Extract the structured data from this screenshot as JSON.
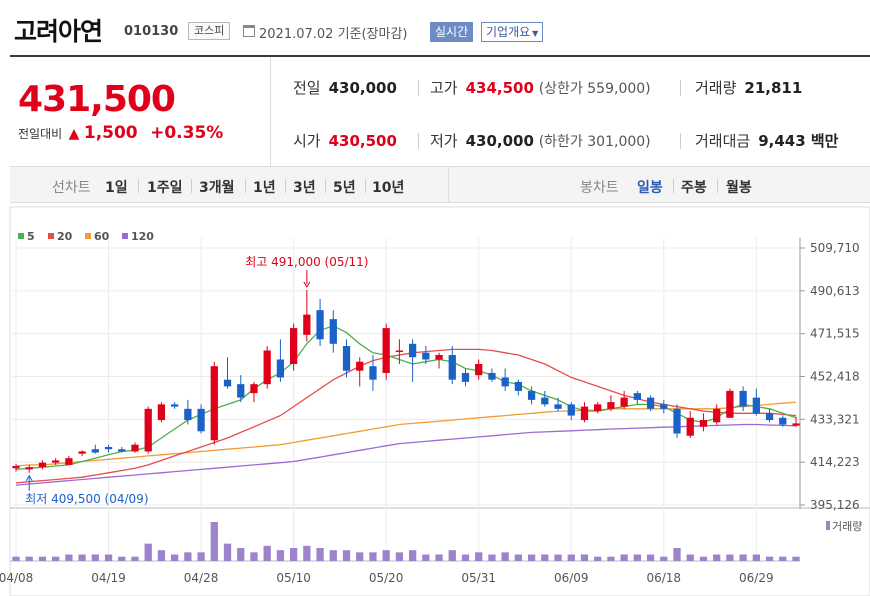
{
  "header": {
    "company_name": "고려아연",
    "stock_code": "010130",
    "market": "코스피",
    "date_basis": "2021.07.02  기준(장마감)",
    "realtime_button": "실시간",
    "overview_button": "기업개요",
    "overview_arrow": "▼"
  },
  "price": {
    "current": "431,500",
    "change_label": "전일대비",
    "change_arrow": "▲",
    "change_amount": "1,500",
    "change_percent": "+0.35%"
  },
  "stats": {
    "prev_close_label": "전일",
    "prev_close": "430,000",
    "high_label": "고가",
    "high": "434,500",
    "upper_limit": "(상한가 559,000)",
    "volume_label": "거래량",
    "volume": "21,811",
    "open_label": "시가",
    "open": "430,500",
    "low_label": "저가",
    "low": "430,000",
    "lower_limit": "(하한가 301,000)",
    "trade_value_label": "거래대금",
    "trade_value": "9,443 백만"
  },
  "period_bar": {
    "line_chart_label": "선차트",
    "periods": [
      "1일",
      "1주일",
      "3개월",
      "1년",
      "3년",
      "5년",
      "10년"
    ],
    "candle_chart_label": "봉차트",
    "candle_periods": [
      "일봉",
      "주봉",
      "월봉"
    ],
    "active_candle": "일봉"
  },
  "colors": {
    "up": "#e0001a",
    "down": "#1a62c8",
    "ma5": "#4caf50",
    "ma20": "#e84c4c",
    "ma60": "#f39c33",
    "ma120": "#9c6ad4",
    "volume": "#9c83cc"
  },
  "chart_data": {
    "type": "candlestick",
    "legend": [
      "5",
      "20",
      "60",
      "120"
    ],
    "yticks": [
      "509,710",
      "490,613",
      "471,515",
      "452,418",
      "433,321",
      "414,223",
      "395,126"
    ],
    "ylim": [
      395126,
      509710
    ],
    "x_tick_labels": [
      {
        "label": "04/08",
        "index": 0
      },
      {
        "label": "04/19",
        "index": 7
      },
      {
        "label": "04/28",
        "index": 14
      },
      {
        "label": "05/10",
        "index": 21
      },
      {
        "label": "05/20",
        "index": 28
      },
      {
        "label": "05/31",
        "index": 35
      },
      {
        "label": "06/09",
        "index": 42
      },
      {
        "label": "06/18",
        "index": 49
      },
      {
        "label": "06/29",
        "index": 56
      }
    ],
    "annotations": {
      "high": "최고 491,000 (05/11)",
      "high_index": 22,
      "high_value": 491000,
      "low": "최저 409,500 (04/09)",
      "low_index": 1,
      "low_value": 409500
    },
    "volume_label": "거래량",
    "candles": [
      {
        "o": 411500,
        "h": 413500,
        "l": 410000,
        "c": 412500,
        "v": 2
      },
      {
        "o": 411000,
        "h": 413000,
        "l": 409500,
        "c": 412000,
        "v": 2
      },
      {
        "o": 412000,
        "h": 415000,
        "l": 411000,
        "c": 414000,
        "v": 2
      },
      {
        "o": 414000,
        "h": 416000,
        "l": 413000,
        "c": 415000,
        "v": 2
      },
      {
        "o": 413000,
        "h": 417000,
        "l": 413000,
        "c": 416000,
        "v": 3
      },
      {
        "o": 418000,
        "h": 419500,
        "l": 417000,
        "c": 419000,
        "v": 3
      },
      {
        "o": 420000,
        "h": 422000,
        "l": 418000,
        "c": 418500,
        "v": 3
      },
      {
        "o": 421000,
        "h": 422000,
        "l": 418500,
        "c": 420000,
        "v": 3
      },
      {
        "o": 420000,
        "h": 421000,
        "l": 418500,
        "c": 419000,
        "v": 2
      },
      {
        "o": 419000,
        "h": 423000,
        "l": 418500,
        "c": 422000,
        "v": 2
      },
      {
        "o": 419000,
        "h": 439000,
        "l": 418000,
        "c": 438000,
        "v": 8
      },
      {
        "o": 433000,
        "h": 441000,
        "l": 432000,
        "c": 440000,
        "v": 5
      },
      {
        "o": 440000,
        "h": 441000,
        "l": 438000,
        "c": 439000,
        "v": 3
      },
      {
        "o": 438000,
        "h": 442000,
        "l": 431000,
        "c": 433000,
        "v": 4
      },
      {
        "o": 438000,
        "h": 440000,
        "l": 427000,
        "c": 428000,
        "v": 4
      },
      {
        "o": 424000,
        "h": 459000,
        "l": 422000,
        "c": 457000,
        "v": 18
      },
      {
        "o": 451000,
        "h": 461000,
        "l": 447000,
        "c": 448000,
        "v": 8
      },
      {
        "o": 449000,
        "h": 453000,
        "l": 441000,
        "c": 443000,
        "v": 6
      },
      {
        "o": 445000,
        "h": 450000,
        "l": 441000,
        "c": 449000,
        "v": 4
      },
      {
        "o": 449000,
        "h": 466000,
        "l": 447000,
        "c": 464000,
        "v": 7
      },
      {
        "o": 460000,
        "h": 469000,
        "l": 450000,
        "c": 452000,
        "v": 5
      },
      {
        "o": 458000,
        "h": 476000,
        "l": 455000,
        "c": 474000,
        "v": 6
      },
      {
        "o": 471000,
        "h": 491000,
        "l": 468000,
        "c": 480000,
        "v": 7
      },
      {
        "o": 482000,
        "h": 487000,
        "l": 466000,
        "c": 469000,
        "v": 6
      },
      {
        "o": 478000,
        "h": 482000,
        "l": 463000,
        "c": 467000,
        "v": 5
      },
      {
        "o": 466000,
        "h": 469000,
        "l": 452000,
        "c": 455000,
        "v": 5
      },
      {
        "o": 455000,
        "h": 461000,
        "l": 448000,
        "c": 459000,
        "v": 4
      },
      {
        "o": 457000,
        "h": 462000,
        "l": 446000,
        "c": 451000,
        "v": 4
      },
      {
        "o": 454000,
        "h": 476000,
        "l": 451000,
        "c": 474000,
        "v": 5
      },
      {
        "o": 464000,
        "h": 469000,
        "l": 458000,
        "c": 464000,
        "v": 4
      },
      {
        "o": 467000,
        "h": 469000,
        "l": 450000,
        "c": 461000,
        "v": 5
      },
      {
        "o": 463000,
        "h": 466000,
        "l": 458000,
        "c": 460000,
        "v": 3
      },
      {
        "o": 460000,
        "h": 463000,
        "l": 456000,
        "c": 462000,
        "v": 3
      },
      {
        "o": 462000,
        "h": 466000,
        "l": 449000,
        "c": 451000,
        "v": 5
      },
      {
        "o": 454000,
        "h": 456000,
        "l": 448000,
        "c": 450000,
        "v": 3
      },
      {
        "o": 453000,
        "h": 460000,
        "l": 451000,
        "c": 458000,
        "v": 4
      },
      {
        "o": 454000,
        "h": 456000,
        "l": 450000,
        "c": 451000,
        "v": 3
      },
      {
        "o": 452000,
        "h": 456000,
        "l": 446000,
        "c": 448000,
        "v": 4
      },
      {
        "o": 450000,
        "h": 451000,
        "l": 444000,
        "c": 446000,
        "v": 3
      },
      {
        "o": 446000,
        "h": 448000,
        "l": 440000,
        "c": 442000,
        "v": 3
      },
      {
        "o": 443000,
        "h": 446000,
        "l": 439000,
        "c": 440000,
        "v": 3
      },
      {
        "o": 440000,
        "h": 443000,
        "l": 437000,
        "c": 438000,
        "v": 3
      },
      {
        "o": 440000,
        "h": 441000,
        "l": 433000,
        "c": 435000,
        "v": 3
      },
      {
        "o": 433000,
        "h": 441000,
        "l": 432000,
        "c": 439000,
        "v": 3
      },
      {
        "o": 437000,
        "h": 441000,
        "l": 436000,
        "c": 440000,
        "v": 2
      },
      {
        "o": 438000,
        "h": 444000,
        "l": 437000,
        "c": 441000,
        "v": 2
      },
      {
        "o": 439000,
        "h": 446000,
        "l": 438000,
        "c": 443000,
        "v": 3
      },
      {
        "o": 445000,
        "h": 446000,
        "l": 440000,
        "c": 442000,
        "v": 3
      },
      {
        "o": 443000,
        "h": 444000,
        "l": 437000,
        "c": 438000,
        "v": 3
      },
      {
        "o": 440000,
        "h": 442000,
        "l": 436000,
        "c": 438000,
        "v": 2
      },
      {
        "o": 438000,
        "h": 440000,
        "l": 425000,
        "c": 427000,
        "v": 6
      },
      {
        "o": 426000,
        "h": 437000,
        "l": 425000,
        "c": 434000,
        "v": 3
      },
      {
        "o": 430000,
        "h": 436000,
        "l": 428000,
        "c": 433000,
        "v": 2
      },
      {
        "o": 432000,
        "h": 440000,
        "l": 431000,
        "c": 438000,
        "v": 3
      },
      {
        "o": 434000,
        "h": 447000,
        "l": 434000,
        "c": 446000,
        "v": 3
      },
      {
        "o": 446000,
        "h": 448000,
        "l": 437000,
        "c": 439000,
        "v": 3
      },
      {
        "o": 443000,
        "h": 447000,
        "l": 435000,
        "c": 436000,
        "v": 3
      },
      {
        "o": 436000,
        "h": 438000,
        "l": 432000,
        "c": 433000,
        "v": 2
      },
      {
        "o": 434000,
        "h": 435000,
        "l": 430000,
        "c": 431000,
        "v": 2
      },
      {
        "o": 430500,
        "h": 434500,
        "l": 430000,
        "c": 431500,
        "v": 2
      }
    ],
    "ma5": [
      411000,
      411500,
      412000,
      412500,
      413000,
      414500,
      416000,
      417500,
      419000,
      419500,
      421000,
      425000,
      429000,
      433000,
      435500,
      438000,
      440000,
      442000,
      447000,
      451000,
      454000,
      459000,
      467000,
      473000,
      475000,
      472000,
      467000,
      463000,
      462000,
      460000,
      458000,
      459000,
      460000,
      459000,
      456000,
      455000,
      453000,
      450000,
      449000,
      446000,
      444000,
      442000,
      439000,
      437000,
      437000,
      438000,
      439000,
      440000,
      440000,
      439000,
      436000,
      433000,
      432000,
      434000,
      438000,
      440000,
      439000,
      438000,
      436000,
      434000
    ],
    "ma20": [
      405000,
      405500,
      406000,
      406500,
      407000,
      407500,
      408500,
      409500,
      410500,
      411500,
      413000,
      415000,
      417000,
      419000,
      421000,
      423000,
      425000,
      427500,
      430000,
      432500,
      435000,
      439000,
      443000,
      447000,
      451000,
      454000,
      457000,
      459500,
      461000,
      462000,
      463000,
      463500,
      464000,
      464500,
      464500,
      464500,
      464000,
      463000,
      462000,
      460000,
      458000,
      455000,
      452000,
      450000,
      448000,
      446000,
      444000,
      442500,
      441000,
      440000,
      439000,
      438000,
      437000,
      436500,
      436000,
      436000,
      436000,
      436000,
      435500,
      435000
    ],
    "ma60": [
      412500,
      413000,
      413000,
      413500,
      414000,
      414500,
      415000,
      415500,
      416000,
      416500,
      417000,
      417500,
      418000,
      418500,
      419000,
      419500,
      420000,
      420500,
      421000,
      421500,
      422000,
      423000,
      424000,
      425000,
      426000,
      427000,
      428000,
      429000,
      430000,
      431000,
      431500,
      432000,
      432500,
      433000,
      433500,
      434000,
      434500,
      435000,
      435500,
      436000,
      436500,
      437000,
      437000,
      437500,
      437500,
      438000,
      438000,
      438000,
      438000,
      438000,
      438000,
      438000,
      438000,
      438000,
      438500,
      439000,
      439500,
      440000,
      440500,
      441000
    ],
    "ma120": [
      404000,
      404500,
      405000,
      405500,
      406000,
      406500,
      407000,
      407500,
      408000,
      408500,
      409000,
      409500,
      410000,
      410500,
      411000,
      411500,
      412000,
      412500,
      413000,
      413500,
      414000,
      414500,
      415500,
      416500,
      417500,
      418500,
      419500,
      420500,
      421500,
      422500,
      423000,
      423500,
      424000,
      424500,
      425000,
      425500,
      426000,
      426500,
      427000,
      427500,
      427700,
      428000,
      428200,
      428500,
      428700,
      429000,
      429200,
      429400,
      429600,
      429800,
      430000,
      430200,
      430400,
      430600,
      430800,
      431000,
      431000,
      430800,
      430600,
      430400
    ]
  }
}
